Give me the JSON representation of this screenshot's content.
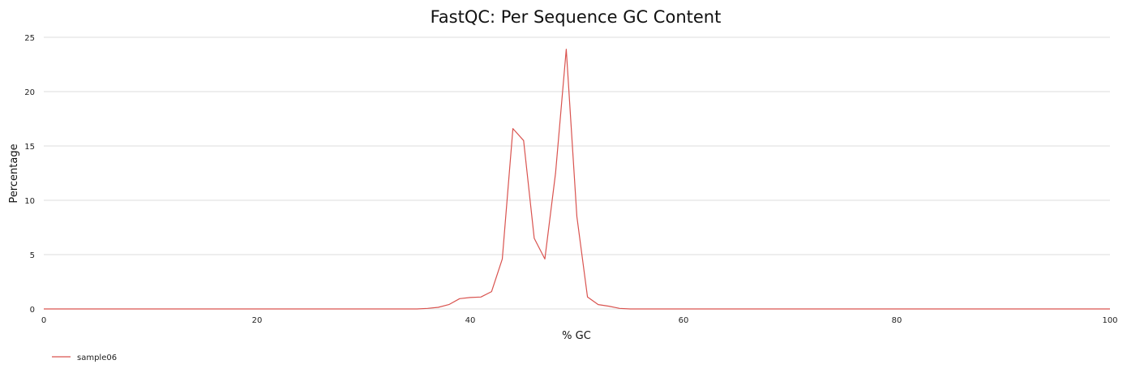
{
  "chart_data": {
    "type": "line",
    "title": "FastQC: Per Sequence GC Content",
    "xlabel": "% GC",
    "ylabel": "Percentage",
    "xlim": [
      0,
      100
    ],
    "ylim": [
      0,
      25
    ],
    "xticks": [
      0,
      20,
      40,
      60,
      80,
      100
    ],
    "yticks": [
      0,
      5,
      10,
      15,
      20,
      25
    ],
    "grid": "horizontal",
    "legend_position": "bottom-left",
    "series": [
      {
        "name": "sample06",
        "color": "#d9534f",
        "x": [
          0,
          5,
          10,
          15,
          20,
          25,
          30,
          35,
          36,
          37,
          38,
          39,
          40,
          41,
          42,
          43,
          44,
          45,
          46,
          47,
          48,
          49,
          50,
          51,
          52,
          53,
          54,
          55,
          60,
          65,
          70,
          75,
          80,
          85,
          90,
          95,
          100
        ],
        "y": [
          0,
          0,
          0,
          0,
          0,
          0,
          0,
          0,
          0.05,
          0.15,
          0.4,
          0.95,
          1.05,
          1.1,
          1.6,
          4.6,
          16.6,
          15.5,
          6.5,
          4.6,
          12.5,
          23.9,
          8.5,
          1.1,
          0.4,
          0.25,
          0.05,
          0,
          0,
          0,
          0,
          0,
          0,
          0,
          0,
          0,
          0
        ]
      }
    ]
  }
}
